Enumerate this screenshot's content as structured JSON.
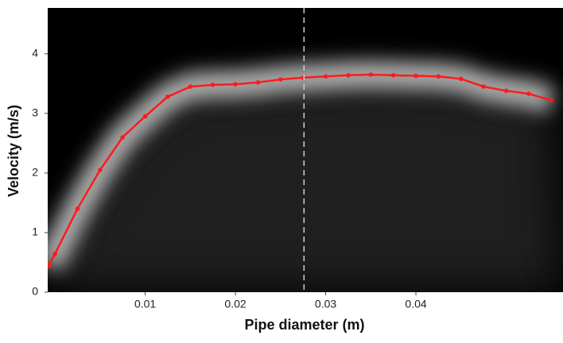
{
  "chart_data": {
    "type": "line",
    "x_label": "Pipe diameter (m)",
    "y_label": "Velocity (m/s)",
    "x": [
      -0.0007,
      0.0,
      0.0025,
      0.005,
      0.0075,
      0.01,
      0.0125,
      0.015,
      0.0175,
      0.02,
      0.0225,
      0.025,
      0.0275,
      0.03,
      0.0325,
      0.035,
      0.0375,
      0.04,
      0.0425,
      0.045,
      0.0475,
      0.05,
      0.0525,
      0.055
    ],
    "series": [
      {
        "color": "#ff1a1a",
        "values": [
          0.44,
          0.64,
          1.4,
          2.05,
          2.6,
          2.95,
          3.28,
          3.45,
          3.48,
          3.49,
          3.52,
          3.57,
          3.6,
          3.62,
          3.64,
          3.65,
          3.64,
          3.63,
          3.62,
          3.58,
          3.45,
          3.38,
          3.33,
          3.22
        ]
      }
    ],
    "xlim": [
      -0.0008,
      0.0563
    ],
    "ylim": [
      0,
      4.77
    ],
    "xticks": [
      0.01,
      0.02,
      0.03,
      0.04
    ],
    "yticks": [
      0,
      1,
      2,
      3,
      4
    ],
    "vline": 0.0276,
    "background": "#000000"
  }
}
